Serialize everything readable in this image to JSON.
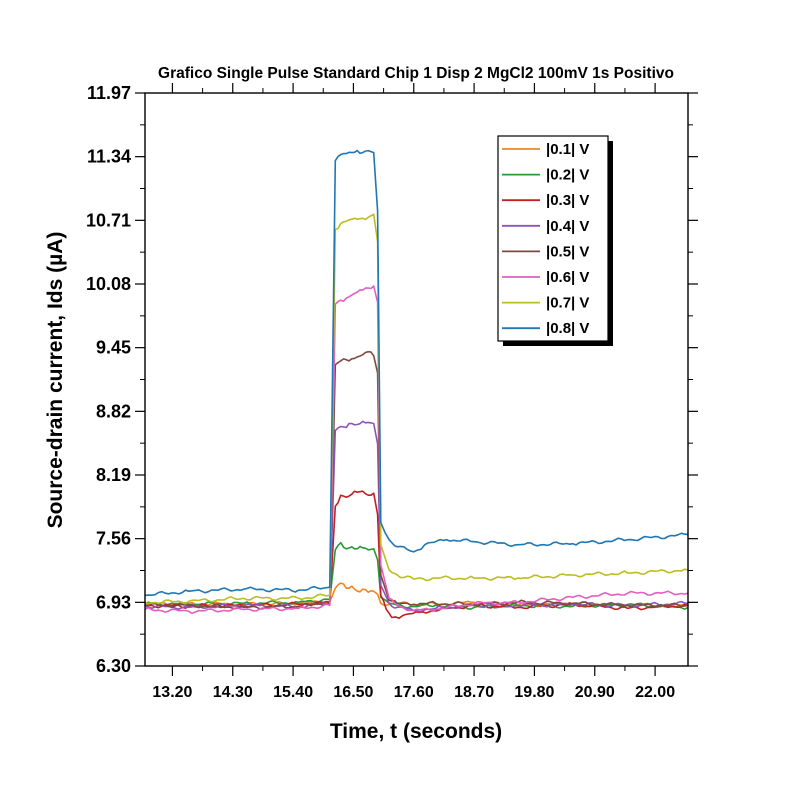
{
  "chart_data": {
    "type": "line",
    "title": "Grafico Single Pulse Standard Chip 1 Disp 2 MgCl2 100mV 1s Positivo",
    "xlabel": "Time, t (seconds)",
    "ylabel": "Source-drain current, Ids (µA)",
    "xlim": [
      12.7,
      22.6
    ],
    "ylim": [
      6.3,
      11.97
    ],
    "xticks": [
      "13.20",
      "14.30",
      "15.40",
      "16.50",
      "17.60",
      "18.70",
      "19.80",
      "20.90",
      "22.00"
    ],
    "yticks": [
      "6.30",
      "6.93",
      "7.56",
      "8.19",
      "8.82",
      "9.45",
      "10.08",
      "10.71",
      "11.34",
      "11.97"
    ],
    "grid": false,
    "legend_position": "top-right",
    "series": [
      {
        "name": "|0.1| V",
        "color": "#f28522",
        "x": [
          12.7,
          13.5,
          14.5,
          15.5,
          16.07,
          16.17,
          16.27,
          16.37,
          16.47,
          16.57,
          16.67,
          16.77,
          16.87,
          16.94,
          17.0,
          17.15,
          17.3,
          17.6,
          18.0,
          18.7,
          19.5,
          20.5,
          21.5,
          22.6
        ],
        "values": [
          6.91,
          6.92,
          6.91,
          6.92,
          6.94,
          7.07,
          7.12,
          7.07,
          7.09,
          7.04,
          7.06,
          7.03,
          7.04,
          7.01,
          6.92,
          6.91,
          6.92,
          6.91,
          6.91,
          6.93,
          6.9,
          6.92,
          6.9,
          6.9
        ]
      },
      {
        "name": "|0.2| V",
        "color": "#2a9a37",
        "x": [
          12.7,
          13.5,
          14.5,
          15.5,
          16.07,
          16.17,
          16.27,
          16.37,
          16.47,
          16.57,
          16.67,
          16.77,
          16.87,
          16.94,
          17.0,
          17.15,
          17.3,
          17.6,
          18.0,
          18.7,
          19.5,
          20.5,
          21.5,
          22.6
        ],
        "values": [
          6.92,
          6.91,
          6.92,
          6.93,
          6.96,
          7.45,
          7.52,
          7.46,
          7.48,
          7.46,
          7.47,
          7.45,
          7.46,
          7.35,
          6.98,
          6.92,
          6.9,
          6.89,
          6.9,
          6.88,
          6.9,
          6.89,
          6.91,
          6.88
        ]
      },
      {
        "name": "|0.3| V",
        "color": "#c02021",
        "x": [
          12.7,
          13.5,
          14.5,
          15.5,
          16.07,
          16.17,
          16.27,
          16.37,
          16.47,
          16.57,
          16.67,
          16.77,
          16.87,
          16.94,
          17.0,
          17.1,
          17.2,
          17.4,
          17.7,
          18.2,
          18.7,
          19.5,
          20.5,
          21.5,
          22.6
        ],
        "values": [
          6.9,
          6.89,
          6.9,
          6.91,
          6.93,
          7.88,
          7.99,
          7.97,
          8.0,
          8.02,
          8.03,
          7.99,
          8.01,
          7.8,
          7.0,
          6.86,
          6.78,
          6.8,
          6.83,
          6.87,
          6.9,
          6.88,
          6.91,
          6.87,
          6.9
        ]
      },
      {
        "name": "|0.4| V",
        "color": "#8c56b8",
        "x": [
          12.7,
          13.5,
          14.5,
          15.5,
          16.07,
          16.17,
          16.27,
          16.37,
          16.47,
          16.57,
          16.67,
          16.77,
          16.87,
          16.94,
          17.0,
          17.15,
          17.3,
          17.6,
          18.0,
          18.7,
          19.5,
          20.5,
          21.5,
          22.6
        ],
        "values": [
          6.89,
          6.88,
          6.9,
          6.89,
          6.92,
          8.63,
          8.67,
          8.66,
          8.7,
          8.69,
          8.72,
          8.71,
          8.7,
          8.5,
          7.1,
          6.92,
          6.88,
          6.85,
          6.87,
          6.9,
          6.9,
          6.91,
          6.9,
          6.92
        ]
      },
      {
        "name": "|0.5| V",
        "color": "#7f4a3e",
        "x": [
          12.7,
          13.5,
          14.5,
          15.5,
          16.07,
          16.17,
          16.27,
          16.37,
          16.47,
          16.57,
          16.67,
          16.77,
          16.87,
          16.94,
          17.0,
          17.15,
          17.3,
          17.6,
          18.0,
          18.7,
          19.5,
          20.5,
          21.5,
          22.6
        ],
        "values": [
          6.9,
          6.9,
          6.88,
          6.89,
          6.93,
          9.28,
          9.32,
          9.33,
          9.34,
          9.36,
          9.38,
          9.41,
          9.37,
          9.2,
          7.2,
          6.95,
          6.92,
          6.91,
          6.92,
          6.91,
          6.93,
          6.92,
          6.9,
          6.9
        ]
      },
      {
        "name": "|0.6| V",
        "color": "#e25fc2",
        "x": [
          12.7,
          13.5,
          14.5,
          15.5,
          16.07,
          16.17,
          16.27,
          16.37,
          16.47,
          16.57,
          16.67,
          16.77,
          16.87,
          16.94,
          17.0,
          17.15,
          17.3,
          17.6,
          18.0,
          18.7,
          19.5,
          20.5,
          21.5,
          22.6
        ],
        "values": [
          6.86,
          6.84,
          6.86,
          6.87,
          6.9,
          9.88,
          9.92,
          9.94,
          9.97,
          10.0,
          10.02,
          10.04,
          10.06,
          9.9,
          7.3,
          6.97,
          6.9,
          6.85,
          6.86,
          6.92,
          6.93,
          6.98,
          7.02,
          7.02
        ]
      },
      {
        "name": "|0.7| V",
        "color": "#bcbd22",
        "x": [
          12.7,
          13.5,
          14.5,
          15.5,
          16.07,
          16.17,
          16.27,
          16.37,
          16.47,
          16.57,
          16.67,
          16.77,
          16.87,
          16.94,
          17.0,
          17.15,
          17.3,
          17.6,
          18.0,
          18.7,
          19.5,
          20.5,
          21.5,
          22.6
        ],
        "values": [
          6.93,
          6.94,
          6.97,
          6.97,
          7.0,
          10.62,
          10.68,
          10.7,
          10.72,
          10.72,
          10.73,
          10.74,
          10.77,
          10.5,
          7.5,
          7.25,
          7.2,
          7.16,
          7.17,
          7.17,
          7.17,
          7.2,
          7.22,
          7.25
        ]
      },
      {
        "name": "|0.8| V",
        "color": "#1f77b4",
        "x": [
          12.7,
          13.5,
          14.5,
          15.5,
          16.07,
          16.17,
          16.27,
          16.37,
          16.47,
          16.57,
          16.67,
          16.77,
          16.87,
          16.94,
          17.0,
          17.15,
          17.3,
          17.6,
          17.8,
          18.2,
          18.7,
          19.5,
          20.5,
          21.5,
          22.6
        ],
        "values": [
          7.0,
          7.04,
          7.06,
          7.05,
          7.08,
          11.3,
          11.36,
          11.37,
          11.38,
          11.4,
          11.38,
          11.4,
          11.38,
          10.8,
          7.72,
          7.55,
          7.48,
          7.43,
          7.5,
          7.55,
          7.53,
          7.5,
          7.51,
          7.55,
          7.6
        ]
      }
    ]
  }
}
